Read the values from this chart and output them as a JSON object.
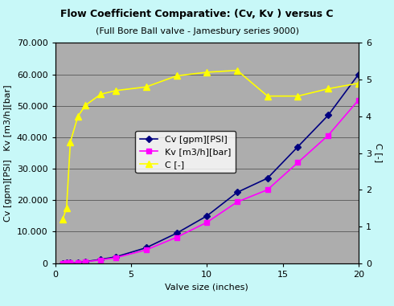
{
  "title": "Flow Coefficient Comparative: (Cv, Kv ) versus C",
  "subtitle": "(Full Bore Ball valve - Jamesbury series 9000)",
  "xlabel": "Valve size (inches)",
  "ylabel_left": "Cv [gpm][PSI]   Kv [m3/h][bar]",
  "ylabel_right": "C [-]",
  "background_color": "#c8f8f8",
  "plot_bg_color": "#adadad",
  "x_valve": [
    0.5,
    0.75,
    1.0,
    1.5,
    2.0,
    3.0,
    4.0,
    6.0,
    8.0,
    10.0,
    12.0,
    14.0,
    16.0,
    18.0,
    20.0
  ],
  "Cv": [
    17,
    55,
    110,
    285,
    500,
    1200,
    2000,
    4900,
    9500,
    15000,
    22500,
    27000,
    37000,
    47000,
    60000
  ],
  "Kv": [
    15,
    47,
    95,
    246,
    432,
    1036,
    1727,
    4231,
    8200,
    12960,
    19440,
    23328,
    31968,
    40608,
    51840
  ],
  "x_C": [
    0.5,
    0.75,
    1.0,
    1.5,
    2.0,
    3.0,
    4.0,
    6.0,
    8.0,
    10.0,
    12.0,
    14.0,
    16.0,
    18.0,
    20.0
  ],
  "C": [
    1.2,
    1.5,
    3.3,
    4.0,
    4.3,
    4.6,
    4.7,
    4.8,
    5.1,
    5.2,
    5.25,
    4.55,
    4.55,
    4.75,
    4.9
  ],
  "ylim_left": [
    0,
    70000
  ],
  "ylim_right": [
    0,
    6
  ],
  "xlim": [
    0,
    20
  ],
  "yticks_left": [
    0,
    10000,
    20000,
    30000,
    40000,
    50000,
    60000,
    70000
  ],
  "ytick_labels_left": [
    "0",
    "10.000",
    "20.000",
    "30.000",
    "40.000",
    "50.000",
    "60.000",
    "70.000"
  ],
  "yticks_right": [
    0,
    1,
    2,
    3,
    4,
    5,
    6
  ],
  "xticks": [
    0,
    5,
    10,
    15,
    20
  ],
  "cv_color": "#000080",
  "kv_color": "#ff00ff",
  "c_color": "#ffff00",
  "title_fontsize": 9,
  "subtitle_fontsize": 8,
  "axis_label_fontsize": 8,
  "tick_fontsize": 8,
  "legend_fontsize": 8
}
